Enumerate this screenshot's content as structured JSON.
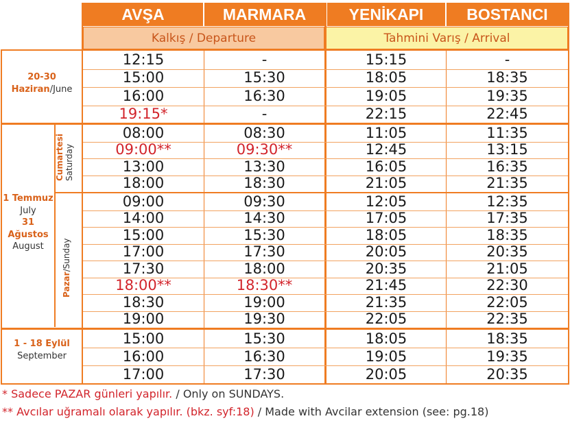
{
  "header": {
    "avsa": "AVŞA",
    "marmara": "MARMARA",
    "yenikapi": "YENİKAPI",
    "bostanci": "BOSTANCI",
    "departure": "Kalkış / Departure",
    "arrival": "Tahmini Varış / Arrival"
  },
  "periods": {
    "p1_dates": "20-30",
    "p1_month_tr": "Haziran",
    "p1_month_en": "/June",
    "p2_start": "1 Temmuz",
    "p2_start_en": "July",
    "p2_end": "31 Ağustos",
    "p2_end_en": "August",
    "saturday_tr": "Cumartesi",
    "saturday_en": "Saturday",
    "sunday_tr": "Pazar",
    "sunday_en": "/Sunday",
    "p3_dates": "1 - 18 Eylül",
    "p3_month_en": "September"
  },
  "rows": [
    {
      "avsa": "12:15",
      "marmara": "-",
      "yenikapi": "15:15",
      "bostanci": "-",
      "hl_avsa": false,
      "hl_marmara": false
    },
    {
      "avsa": "15:00",
      "marmara": "15:30",
      "yenikapi": "18:05",
      "bostanci": "18:35",
      "hl_avsa": false,
      "hl_marmara": false
    },
    {
      "avsa": "16:00",
      "marmara": "16:30",
      "yenikapi": "19:05",
      "bostanci": "19:35",
      "hl_avsa": false,
      "hl_marmara": false
    },
    {
      "avsa": "19:15*",
      "marmara": "-",
      "yenikapi": "22:15",
      "bostanci": "22:45",
      "hl_avsa": true,
      "hl_marmara": false
    },
    {
      "avsa": "08:00",
      "marmara": "08:30",
      "yenikapi": "11:05",
      "bostanci": "11:35",
      "hl_avsa": false,
      "hl_marmara": false
    },
    {
      "avsa": "09:00**",
      "marmara": "09:30**",
      "yenikapi": "12:45",
      "bostanci": "13:15",
      "hl_avsa": true,
      "hl_marmara": true
    },
    {
      "avsa": "13:00",
      "marmara": "13:30",
      "yenikapi": "16:05",
      "bostanci": "16:35",
      "hl_avsa": false,
      "hl_marmara": false
    },
    {
      "avsa": "18:00",
      "marmara": "18:30",
      "yenikapi": "21:05",
      "bostanci": "21:35",
      "hl_avsa": false,
      "hl_marmara": false
    },
    {
      "avsa": "09:00",
      "marmara": "09:30",
      "yenikapi": "12:05",
      "bostanci": "12:35",
      "hl_avsa": false,
      "hl_marmara": false
    },
    {
      "avsa": "14:00",
      "marmara": "14:30",
      "yenikapi": "17:05",
      "bostanci": "17:35",
      "hl_avsa": false,
      "hl_marmara": false
    },
    {
      "avsa": "15:00",
      "marmara": "15:30",
      "yenikapi": "18:05",
      "bostanci": "18:35",
      "hl_avsa": false,
      "hl_marmara": false
    },
    {
      "avsa": "17:00",
      "marmara": "17:30",
      "yenikapi": "20:05",
      "bostanci": "20:35",
      "hl_avsa": false,
      "hl_marmara": false
    },
    {
      "avsa": "17:30",
      "marmara": "18:00",
      "yenikapi": "20:35",
      "bostanci": "21:05",
      "hl_avsa": false,
      "hl_marmara": false
    },
    {
      "avsa": "18:00**",
      "marmara": "18:30**",
      "yenikapi": "21:45",
      "bostanci": "22:30",
      "hl_avsa": true,
      "hl_marmara": true
    },
    {
      "avsa": "18:30",
      "marmara": "19:00",
      "yenikapi": "21:35",
      "bostanci": "22:05",
      "hl_avsa": false,
      "hl_marmara": false
    },
    {
      "avsa": "19:00",
      "marmara": "19:30",
      "yenikapi": "22:05",
      "bostanci": "22:35",
      "hl_avsa": false,
      "hl_marmara": false
    },
    {
      "avsa": "15:00",
      "marmara": "15:30",
      "yenikapi": "18:05",
      "bostanci": "18:35",
      "hl_avsa": false,
      "hl_marmara": false
    },
    {
      "avsa": "16:00",
      "marmara": "16:30",
      "yenikapi": "19:05",
      "bostanci": "19:35",
      "hl_avsa": false,
      "hl_marmara": false
    },
    {
      "avsa": "17:00",
      "marmara": "17:30",
      "yenikapi": "20:05",
      "bostanci": "20:35",
      "hl_avsa": false,
      "hl_marmara": false
    }
  ],
  "notes": {
    "n1_tr": "* Sadece PAZAR günleri yapılır.",
    "n1_en": " / Only on SUNDAYS.",
    "n2_tr": "** Avcılar uğramalı olarak yapılır. (bkz. syf:18)",
    "n2_en": " / Made with Avcilar extension (see: pg.18)"
  },
  "colors": {
    "accent": "#ef7c22",
    "highlight": "#d2242b",
    "departure_bg": "#f8c9a0",
    "arrival_bg": "#fbf3a6"
  }
}
